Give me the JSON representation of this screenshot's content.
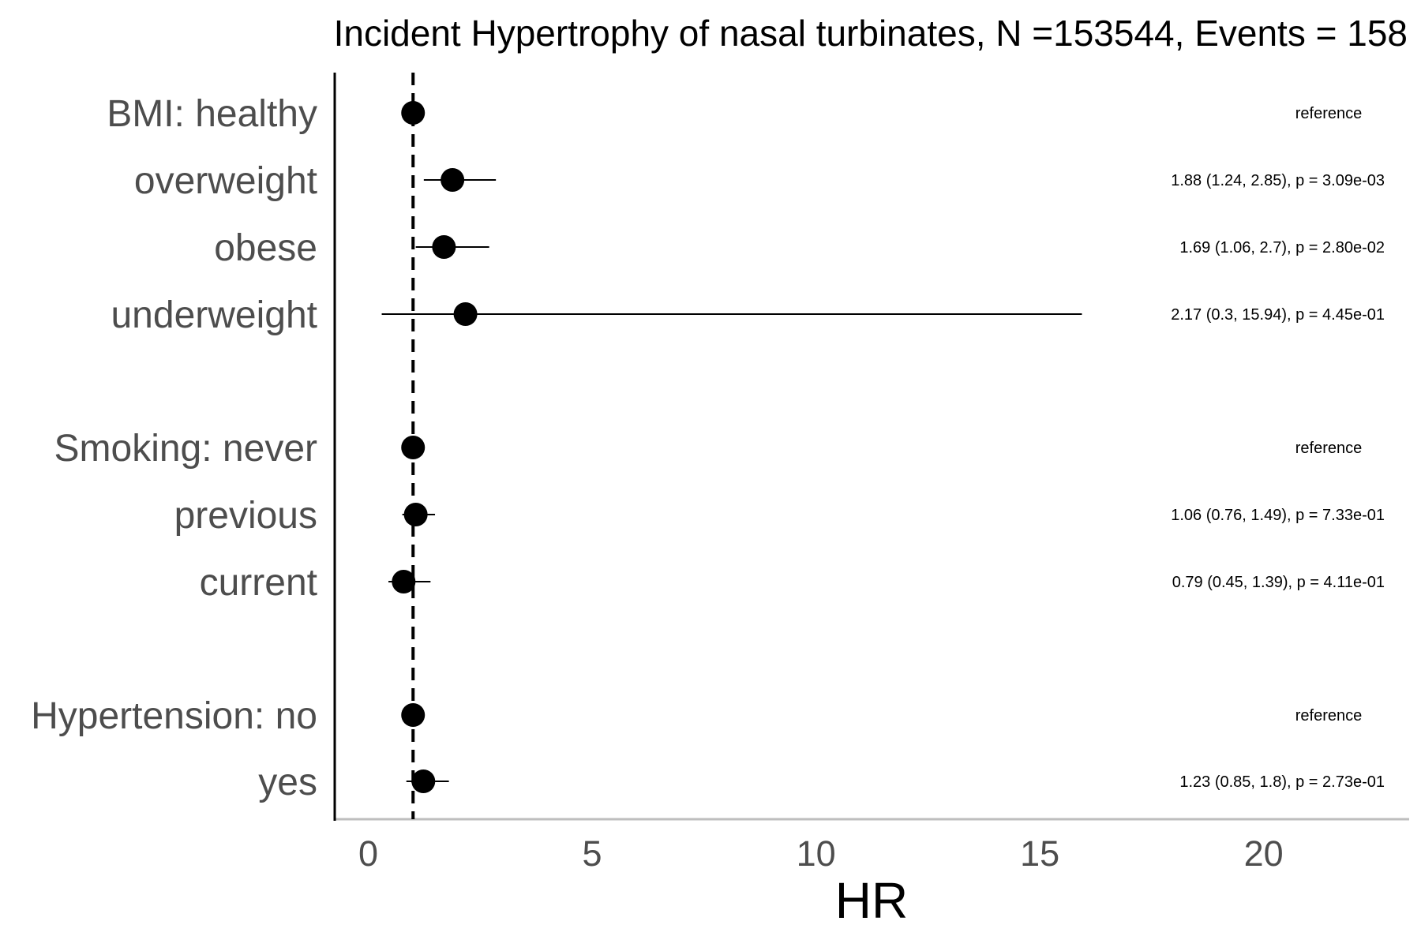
{
  "chart_data": {
    "type": "forest",
    "title": "Incident Hypertrophy of nasal turbinates, N =153544, Events = 158",
    "xlabel": "HR",
    "xlim": [
      -0.75,
      23.25
    ],
    "xticks": [
      0,
      5,
      10,
      15,
      20
    ],
    "reference_line": 1,
    "rows": [
      {
        "label": "BMI: healthy",
        "hr": 1,
        "lower": null,
        "upper": null,
        "annotation": "reference"
      },
      {
        "label": "overweight",
        "hr": 1.88,
        "lower": 1.24,
        "upper": 2.85,
        "annotation": "1.88 (1.24, 2.85), p = 3.09e-03"
      },
      {
        "label": "obese",
        "hr": 1.69,
        "lower": 1.06,
        "upper": 2.7,
        "annotation": "1.69 (1.06, 2.7), p = 2.80e-02"
      },
      {
        "label": "underweight",
        "hr": 2.17,
        "lower": 0.3,
        "upper": 15.94,
        "annotation": "2.17 (0.3, 15.94), p = 4.45e-01"
      },
      {
        "label": "Smoking: never",
        "hr": 1,
        "lower": null,
        "upper": null,
        "annotation": "reference"
      },
      {
        "label": "previous",
        "hr": 1.06,
        "lower": 0.76,
        "upper": 1.49,
        "annotation": "1.06 (0.76, 1.49), p = 7.33e-01"
      },
      {
        "label": "current",
        "hr": 0.79,
        "lower": 0.45,
        "upper": 1.39,
        "annotation": "0.79 (0.45, 1.39), p = 4.11e-01"
      },
      {
        "label": "Hypertension: no",
        "hr": 1,
        "lower": null,
        "upper": null,
        "annotation": "reference"
      },
      {
        "label": "yes",
        "hr": 1.23,
        "lower": 0.85,
        "upper": 1.8,
        "annotation": "1.23 (0.85, 1.8), p = 2.73e-01"
      }
    ],
    "colors": {
      "point": "#000000",
      "ci_line": "#000000",
      "reference_line": "#000000",
      "label_text": "#4d4d4d",
      "x_axis_line": "#bebebe",
      "y_axis_line": "#000000"
    }
  }
}
